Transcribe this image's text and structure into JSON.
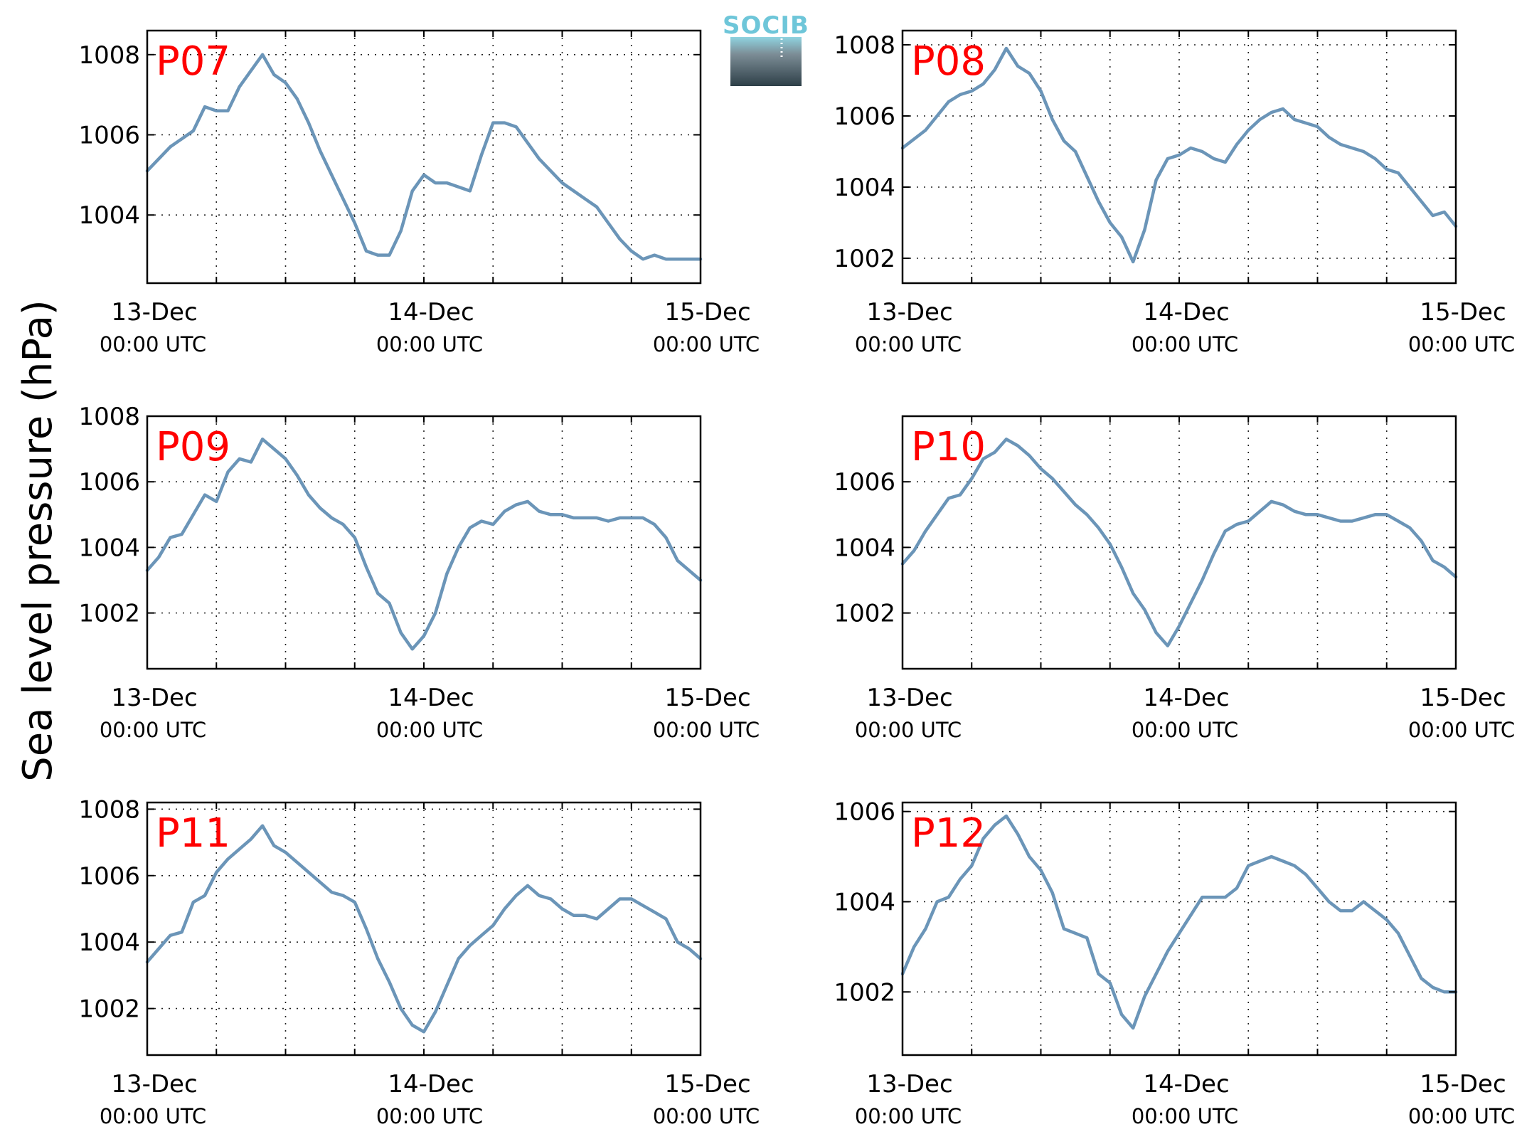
{
  "figure": {
    "ylabel": "Sea level pressure (hPa)",
    "logo_text": "SOCIB",
    "colors": {
      "line": "#6b95b8",
      "title": "#ff0000",
      "grid": "#222222"
    }
  },
  "chart_data": [
    {
      "type": "line",
      "title": "P07",
      "x_ticks": [
        {
          "date": "13-Dec",
          "time": "00:00 UTC"
        },
        {
          "date": "14-Dec",
          "time": "00:00 UTC"
        },
        {
          "date": "15-Dec",
          "time": "00:00 UTC"
        }
      ],
      "xlim_hours": [
        0,
        48
      ],
      "ylim": [
        1002.3,
        1008.6
      ],
      "yticks": [
        1004,
        1006,
        1008
      ],
      "grid": true,
      "series": [
        {
          "x_hours": [
            0,
            2,
            4,
            5,
            6,
            7,
            8,
            9,
            10,
            11,
            11.5,
            12,
            13,
            14,
            15,
            16,
            17,
            18,
            19,
            20,
            21,
            22,
            23,
            24,
            25,
            26,
            27,
            28,
            29,
            30,
            31,
            32,
            33,
            34,
            35,
            36,
            37,
            38,
            39,
            40,
            41,
            42,
            43,
            44,
            45,
            46,
            47,
            48
          ],
          "values": [
            1005.1,
            1005.7,
            1006.1,
            1006.7,
            1006.6,
            1006.6,
            1007.2,
            1007.6,
            1008.0,
            1007.5,
            1007.4,
            1007.3,
            1006.9,
            1006.3,
            1005.6,
            1005.0,
            1004.4,
            1003.8,
            1003.1,
            1003.0,
            1003.0,
            1003.6,
            1004.6,
            1005.0,
            1004.8,
            1004.8,
            1004.7,
            1004.6,
            1005.5,
            1006.3,
            1006.3,
            1006.2,
            1005.8,
            1005.4,
            1005.1,
            1004.8,
            1004.6,
            1004.4,
            1004.2,
            1003.8,
            1003.4,
            1003.1,
            1002.9,
            1003.0,
            1002.9,
            1002.9,
            1002.9,
            1002.9
          ]
        }
      ]
    },
    {
      "type": "line",
      "title": "P08",
      "x_ticks": [
        {
          "date": "13-Dec",
          "time": "00:00 UTC"
        },
        {
          "date": "14-Dec",
          "time": "00:00 UTC"
        },
        {
          "date": "15-Dec",
          "time": "00:00 UTC"
        }
      ],
      "xlim_hours": [
        0,
        48
      ],
      "ylim": [
        1001.3,
        1008.4
      ],
      "yticks": [
        1002,
        1004,
        1006,
        1008
      ],
      "grid": true,
      "series": [
        {
          "x_hours": [
            0,
            2,
            3,
            4,
            5,
            6,
            7,
            8,
            9,
            10,
            11,
            12,
            13,
            14,
            15,
            16,
            17,
            18,
            19,
            20,
            21,
            22,
            23,
            24,
            25,
            26,
            27,
            28,
            29,
            30,
            31,
            32,
            33,
            34,
            35,
            36,
            37,
            38,
            39,
            40,
            41,
            42,
            43,
            44,
            45,
            46,
            47,
            48
          ],
          "values": [
            1005.1,
            1005.6,
            1006.0,
            1006.4,
            1006.6,
            1006.7,
            1006.9,
            1007.3,
            1007.9,
            1007.4,
            1007.2,
            1006.7,
            1005.9,
            1005.3,
            1005.0,
            1004.3,
            1003.6,
            1003.0,
            1002.6,
            1001.9,
            1002.8,
            1004.2,
            1004.8,
            1004.9,
            1005.1,
            1005.0,
            1004.8,
            1004.7,
            1005.2,
            1005.6,
            1005.9,
            1006.1,
            1006.2,
            1005.9,
            1005.8,
            1005.7,
            1005.4,
            1005.2,
            1005.1,
            1005.0,
            1004.8,
            1004.5,
            1004.4,
            1004.0,
            1003.6,
            1003.2,
            1003.3,
            1002.9
          ]
        }
      ]
    },
    {
      "type": "line",
      "title": "P09",
      "x_ticks": [
        {
          "date": "13-Dec",
          "time": "00:00 UTC"
        },
        {
          "date": "14-Dec",
          "time": "00:00 UTC"
        },
        {
          "date": "15-Dec",
          "time": "00:00 UTC"
        }
      ],
      "xlim_hours": [
        0,
        48
      ],
      "ylim": [
        1000.3,
        1008.0
      ],
      "yticks": [
        1002,
        1004,
        1006,
        1008
      ],
      "grid": true,
      "series": [
        {
          "x_hours": [
            0,
            1,
            2,
            3,
            4,
            5,
            6,
            7,
            8,
            9,
            10,
            11,
            12,
            13,
            14,
            15,
            16,
            17,
            18,
            19,
            20,
            21,
            22,
            23,
            24,
            25,
            26,
            27,
            28,
            29,
            30,
            31,
            32,
            33,
            34,
            35,
            36,
            37,
            38,
            39,
            40,
            41,
            42,
            43,
            44,
            45,
            46,
            47,
            48
          ],
          "values": [
            1003.3,
            1003.7,
            1004.3,
            1004.4,
            1005.0,
            1005.6,
            1005.4,
            1006.3,
            1006.7,
            1006.6,
            1007.3,
            1007.0,
            1006.7,
            1006.2,
            1005.6,
            1005.2,
            1004.9,
            1004.7,
            1004.3,
            1003.4,
            1002.6,
            1002.3,
            1001.4,
            1000.9,
            1001.3,
            1002.0,
            1003.2,
            1004.0,
            1004.6,
            1004.8,
            1004.7,
            1005.1,
            1005.3,
            1005.4,
            1005.1,
            1005.0,
            1005.0,
            1004.9,
            1004.9,
            1004.9,
            1004.8,
            1004.9,
            1004.9,
            1004.9,
            1004.7,
            1004.3,
            1003.6,
            1003.3,
            1003.0
          ]
        }
      ]
    },
    {
      "type": "line",
      "title": "P10",
      "x_ticks": [
        {
          "date": "13-Dec",
          "time": "00:00 UTC"
        },
        {
          "date": "14-Dec",
          "time": "00:00 UTC"
        },
        {
          "date": "15-Dec",
          "time": "00:00 UTC"
        }
      ],
      "xlim_hours": [
        0,
        48
      ],
      "ylim": [
        1000.3,
        1008.0
      ],
      "yticks": [
        1002,
        1004,
        1006
      ],
      "grid": true,
      "series": [
        {
          "x_hours": [
            0,
            1,
            2,
            3,
            4,
            5,
            6,
            7,
            8,
            9,
            10,
            11,
            12,
            13,
            14,
            15,
            16,
            17,
            18,
            19,
            20,
            21,
            22,
            23,
            24,
            25,
            26,
            27,
            28,
            29,
            30,
            31,
            32,
            33,
            34,
            35,
            36,
            37,
            38,
            39,
            40,
            41,
            42,
            43,
            44,
            45,
            46,
            47,
            48
          ],
          "values": [
            1003.5,
            1003.9,
            1004.5,
            1005.0,
            1005.5,
            1005.6,
            1006.1,
            1006.7,
            1006.9,
            1007.3,
            1007.1,
            1006.8,
            1006.4,
            1006.1,
            1005.7,
            1005.3,
            1005.0,
            1004.6,
            1004.1,
            1003.4,
            1002.6,
            1002.1,
            1001.4,
            1001.0,
            1001.6,
            1002.3,
            1003.0,
            1003.8,
            1004.5,
            1004.7,
            1004.8,
            1005.1,
            1005.4,
            1005.3,
            1005.1,
            1005.0,
            1005.0,
            1004.9,
            1004.8,
            1004.8,
            1004.9,
            1005.0,
            1005.0,
            1004.8,
            1004.6,
            1004.2,
            1003.6,
            1003.4,
            1003.1
          ]
        }
      ]
    },
    {
      "type": "line",
      "title": "P11",
      "x_ticks": [
        {
          "date": "13-Dec",
          "time": "00:00 UTC"
        },
        {
          "date": "14-Dec",
          "time": "00:00 UTC"
        },
        {
          "date": "15-Dec",
          "time": "00:00 UTC"
        }
      ],
      "xlim_hours": [
        0,
        48
      ],
      "ylim": [
        1000.6,
        1008.2
      ],
      "yticks": [
        1002,
        1004,
        1006,
        1008
      ],
      "grid": true,
      "series": [
        {
          "x_hours": [
            0,
            1,
            2,
            3,
            4,
            5,
            6,
            7,
            8,
            9,
            10,
            11,
            12,
            13,
            14,
            15,
            16,
            17,
            18,
            19,
            20,
            21,
            22,
            23,
            24,
            25,
            26,
            27,
            28,
            29,
            30,
            31,
            32,
            33,
            34,
            35,
            36,
            37,
            38,
            39,
            40,
            41,
            42,
            43,
            44,
            45,
            46,
            47,
            48
          ],
          "values": [
            1003.4,
            1003.8,
            1004.2,
            1004.3,
            1005.2,
            1005.4,
            1006.1,
            1006.5,
            1006.8,
            1007.1,
            1007.5,
            1006.9,
            1006.7,
            1006.4,
            1006.1,
            1005.8,
            1005.5,
            1005.4,
            1005.2,
            1004.4,
            1003.5,
            1002.8,
            1002.0,
            1001.5,
            1001.3,
            1001.9,
            1002.7,
            1003.5,
            1003.9,
            1004.2,
            1004.5,
            1005.0,
            1005.4,
            1005.7,
            1005.4,
            1005.3,
            1005.0,
            1004.8,
            1004.8,
            1004.7,
            1005.0,
            1005.3,
            1005.3,
            1005.1,
            1004.9,
            1004.7,
            1004.0,
            1003.8,
            1003.5
          ]
        }
      ]
    },
    {
      "type": "line",
      "title": "P12",
      "x_ticks": [
        {
          "date": "13-Dec",
          "time": "00:00 UTC"
        },
        {
          "date": "14-Dec",
          "time": "00:00 UTC"
        },
        {
          "date": "15-Dec",
          "time": "00:00 UTC"
        }
      ],
      "xlim_hours": [
        0,
        48
      ],
      "ylim": [
        1000.6,
        1006.2
      ],
      "yticks": [
        1002,
        1004,
        1006
      ],
      "grid": true,
      "series": [
        {
          "x_hours": [
            0,
            1,
            2,
            3,
            4,
            5,
            6,
            7,
            8,
            9,
            10,
            11,
            12,
            13,
            14,
            15,
            16,
            17,
            18,
            19,
            20,
            21,
            22,
            23,
            24,
            25,
            26,
            27,
            28,
            29,
            30,
            31,
            32,
            33,
            34,
            35,
            36,
            37,
            38,
            39,
            40,
            41,
            42,
            43,
            44,
            45,
            46,
            47,
            48
          ],
          "values": [
            1002.4,
            1003.0,
            1003.4,
            1004.0,
            1004.1,
            1004.5,
            1004.8,
            1005.4,
            1005.7,
            1005.9,
            1005.5,
            1005.0,
            1004.7,
            1004.2,
            1003.4,
            1003.3,
            1003.2,
            1002.4,
            1002.2,
            1001.5,
            1001.2,
            1001.9,
            1002.4,
            1002.9,
            1003.3,
            1003.7,
            1004.1,
            1004.1,
            1004.1,
            1004.3,
            1004.8,
            1004.9,
            1005.0,
            1004.9,
            1004.8,
            1004.6,
            1004.3,
            1004.0,
            1003.8,
            1003.8,
            1004.0,
            1003.8,
            1003.6,
            1003.3,
            1002.8,
            1002.3,
            1002.1,
            1002.0,
            1002.0
          ]
        }
      ]
    }
  ]
}
